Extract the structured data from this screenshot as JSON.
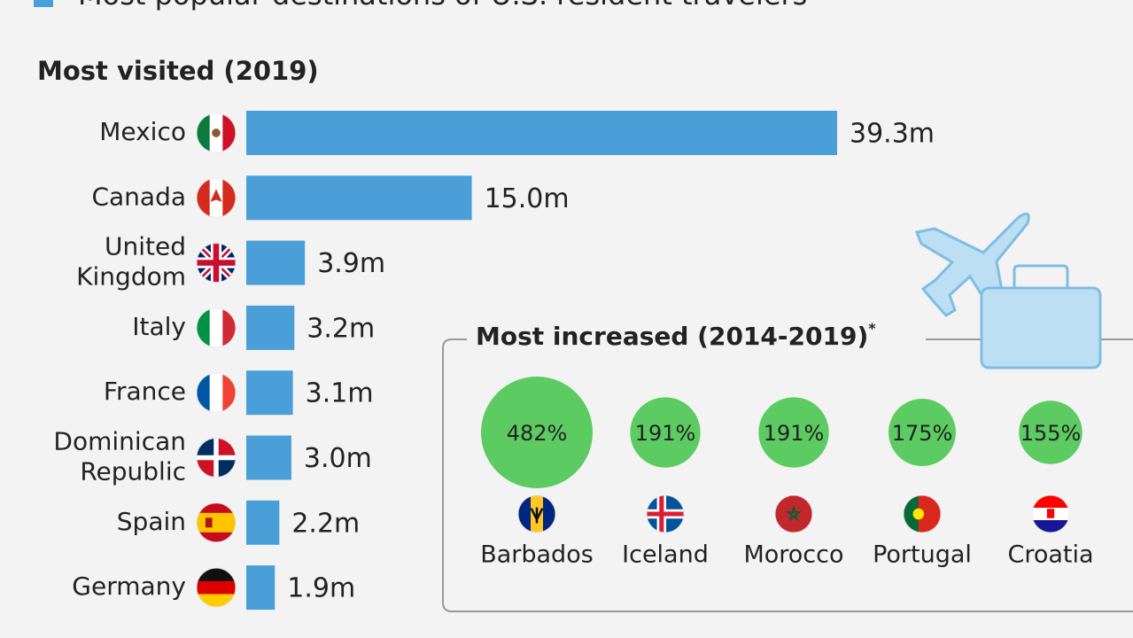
{
  "header": {
    "title": "Most popular destinations of U.S. resident travelers"
  },
  "chart_data": [
    {
      "type": "bar",
      "title": "Most visited (2019)",
      "categories": [
        "Mexico",
        "Canada",
        "United Kingdom",
        "Italy",
        "France",
        "Dominican Republic",
        "Spain",
        "Germany"
      ],
      "values": [
        39.3,
        15.0,
        3.9,
        3.2,
        3.1,
        3.0,
        2.2,
        1.9
      ],
      "value_labels": [
        "39.3m",
        "15.0m",
        "3.9m",
        "3.2m",
        "3.1m",
        "3.0m",
        "2.2m",
        "1.9m"
      ],
      "color": "#4a9fd8"
    },
    {
      "type": "bubble",
      "title": "Most increased (2014-2019)",
      "footnote_mark": "*",
      "categories": [
        "Barbados",
        "Iceland",
        "Morocco",
        "Portugal",
        "Croatia"
      ],
      "values": [
        482,
        191,
        191,
        175,
        155
      ],
      "value_labels": [
        "482%",
        "191%",
        "191%",
        "175%",
        "155%"
      ],
      "color": "#5ccb62"
    }
  ]
}
